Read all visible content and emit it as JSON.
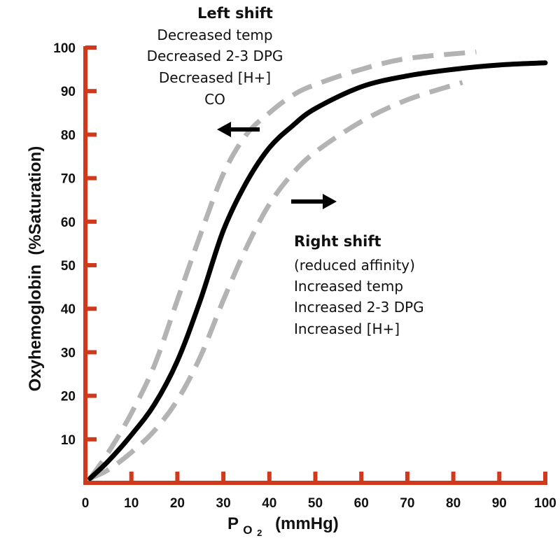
{
  "chart_data": {
    "type": "line",
    "title": "",
    "xlabel": {
      "base": "P",
      "sub": "O",
      "subsub": "2",
      "unit": "(mmHg)"
    },
    "ylabel": "Oxyhemoglobin  (%Saturation)",
    "xlim": [
      0,
      100
    ],
    "ylim": [
      0,
      100
    ],
    "x_ticks": [
      0,
      10,
      20,
      30,
      40,
      50,
      60,
      70,
      80,
      90,
      100
    ],
    "y_ticks": [
      10,
      20,
      30,
      40,
      50,
      60,
      70,
      80,
      90,
      100
    ],
    "grid": false,
    "axis_color": "#d0391b",
    "series": [
      {
        "style": "solid",
        "color": "#000000",
        "x": [
          1,
          5,
          10,
          15,
          20,
          25,
          30,
          35,
          40,
          45,
          50,
          60,
          70,
          80,
          90,
          100
        ],
        "y": [
          1,
          5,
          11,
          18,
          28,
          42,
          58,
          69,
          77,
          82,
          86,
          91,
          93.5,
          95,
          96,
          96.5
        ]
      },
      {
        "style": "dashed",
        "color": "#b3b3b3",
        "x": [
          1,
          5,
          10,
          15,
          20,
          25,
          30,
          35,
          40,
          45,
          50,
          60,
          70,
          85
        ],
        "y": [
          1,
          7,
          16,
          27,
          42,
          57,
          71,
          80,
          85,
          89,
          91.5,
          95,
          97.5,
          99
        ]
      },
      {
        "style": "dashed",
        "color": "#b3b3b3",
        "x": [
          1,
          5,
          10,
          15,
          20,
          25,
          30,
          35,
          40,
          45,
          50,
          60,
          70,
          82
        ],
        "y": [
          1,
          3,
          7,
          12,
          19,
          29,
          42,
          54,
          64,
          71,
          76,
          83,
          88,
          92
        ]
      }
    ],
    "annotations": {
      "left": {
        "heading": "Left shift",
        "lines": [
          "Decreased temp",
          "Decreased 2-3 DPG",
          "Decreased [H+]",
          "CO"
        ]
      },
      "right": {
        "heading": "Right shift",
        "lines": [
          "(reduced affinity)",
          "Increased temp",
          "Increased 2-3 DPG",
          "Increased [H+]"
        ]
      }
    }
  }
}
